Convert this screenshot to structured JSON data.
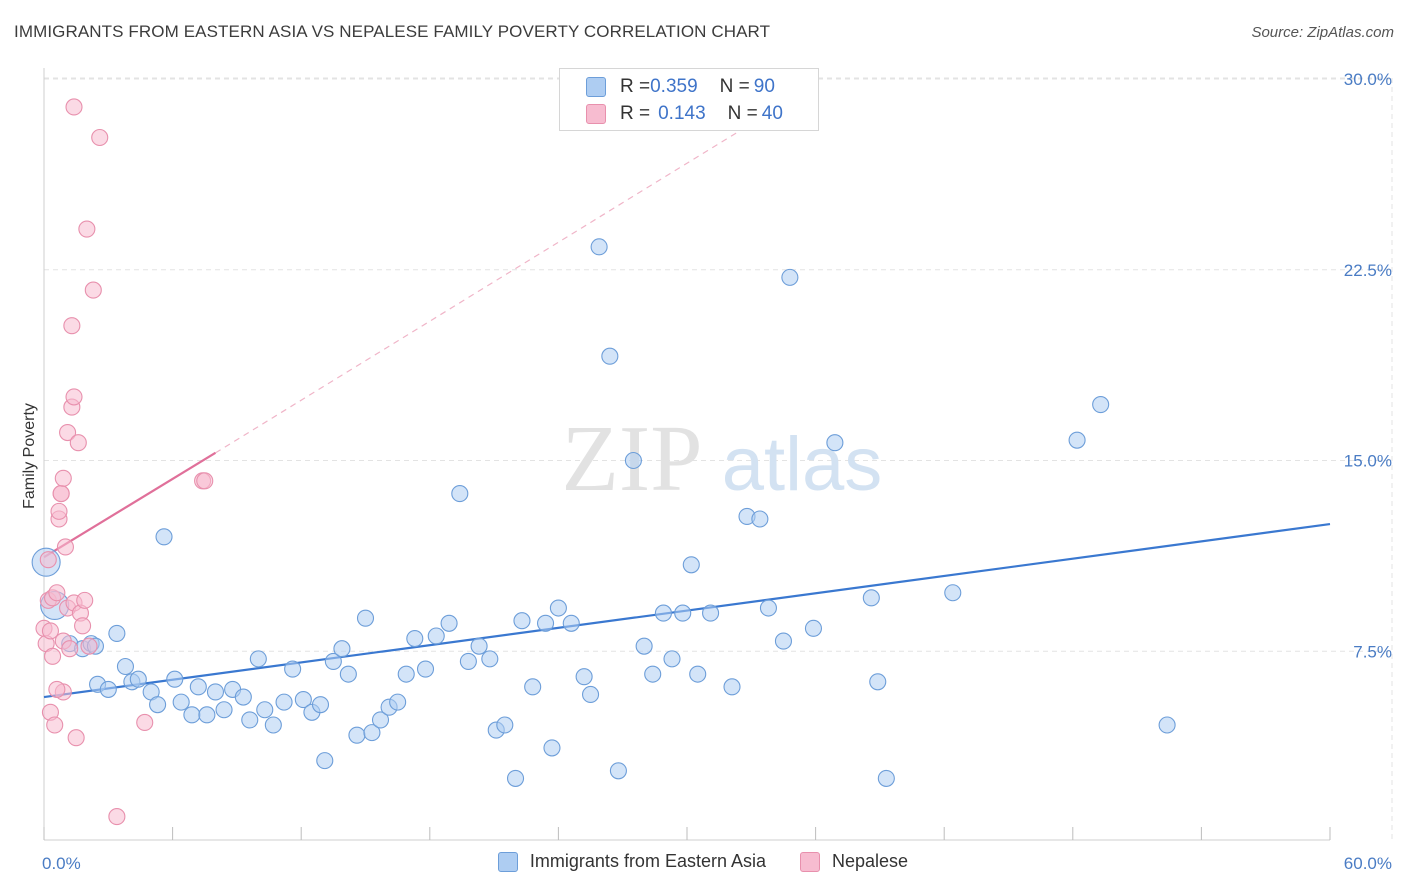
{
  "header": {
    "title": "IMMIGRANTS FROM EASTERN ASIA VS NEPALESE FAMILY POVERTY CORRELATION CHART",
    "source": "Source: ZipAtlas.com"
  },
  "watermark": {
    "zip": "ZIP",
    "atlas": "atlas"
  },
  "legend": {
    "rows": [
      {
        "r_label": "R = ",
        "r_value": "0.359",
        "n_label": "N = ",
        "n_value": "90",
        "color": "#aecdf2",
        "border": "#6d9ed9"
      },
      {
        "r_label": "R = ",
        "r_value": "0.143",
        "n_label": "N = ",
        "n_value": "40",
        "color": "#f7bcd0",
        "border": "#e890ad"
      }
    ]
  },
  "bottom_legend": {
    "items": [
      {
        "label": "Immigrants from Eastern Asia",
        "color": "#aecdf2",
        "border": "#6d9ed9"
      },
      {
        "label": "Nepalese",
        "color": "#f7bcd0",
        "border": "#e890ad"
      }
    ]
  },
  "chart_data": {
    "type": "scatter",
    "title": "IMMIGRANTS FROM EASTERN ASIA VS NEPALESE FAMILY POVERTY CORRELATION CHART",
    "xlabel": "",
    "ylabel": "Family Poverty",
    "xlim": [
      0,
      60
    ],
    "ylim": [
      0,
      30
    ],
    "x_ticks": [
      {
        "value": 0,
        "label": "0.0%"
      },
      {
        "value": 60,
        "label": "60.0%"
      }
    ],
    "x_minor_ticks": [
      0,
      6,
      12,
      18,
      24,
      30,
      36,
      42,
      48,
      54,
      60
    ],
    "y_ticks": [
      {
        "value": 7.5,
        "label": "7.5%"
      },
      {
        "value": 15,
        "label": "15.0%"
      },
      {
        "value": 22.5,
        "label": "22.5%"
      },
      {
        "value": 30,
        "label": "30.0%"
      }
    ],
    "grid": true,
    "series": [
      {
        "name": "Immigrants from Eastern Asia",
        "color": "#aecdf2",
        "stroke": "#6d9ed9",
        "trend": {
          "x0": 0,
          "y0": 5.7,
          "x1": 60,
          "y1": 12.5,
          "color": "#3a78d0",
          "dashed": false
        },
        "points": [
          {
            "x": 0.1,
            "y": 11.0,
            "big": true
          },
          {
            "x": 0.5,
            "y": 9.3,
            "big": true
          },
          {
            "x": 1.2,
            "y": 7.8
          },
          {
            "x": 1.8,
            "y": 7.6
          },
          {
            "x": 2.2,
            "y": 7.8
          },
          {
            "x": 3.4,
            "y": 8.2
          },
          {
            "x": 2.5,
            "y": 6.2
          },
          {
            "x": 3.0,
            "y": 6.0
          },
          {
            "x": 3.8,
            "y": 6.9
          },
          {
            "x": 4.1,
            "y": 6.3
          },
          {
            "x": 4.4,
            "y": 6.4
          },
          {
            "x": 5.0,
            "y": 5.9
          },
          {
            "x": 5.3,
            "y": 5.4
          },
          {
            "x": 5.6,
            "y": 12.0
          },
          {
            "x": 6.1,
            "y": 6.4
          },
          {
            "x": 6.4,
            "y": 5.5
          },
          {
            "x": 6.9,
            "y": 5.0
          },
          {
            "x": 7.2,
            "y": 6.1
          },
          {
            "x": 7.6,
            "y": 5.0
          },
          {
            "x": 8.0,
            "y": 5.9
          },
          {
            "x": 8.4,
            "y": 5.2
          },
          {
            "x": 8.8,
            "y": 6.0
          },
          {
            "x": 9.3,
            "y": 5.7
          },
          {
            "x": 9.6,
            "y": 4.8
          },
          {
            "x": 10.0,
            "y": 7.2
          },
          {
            "x": 10.3,
            "y": 5.2
          },
          {
            "x": 10.7,
            "y": 4.6
          },
          {
            "x": 11.2,
            "y": 5.5
          },
          {
            "x": 11.6,
            "y": 6.8
          },
          {
            "x": 12.1,
            "y": 5.6
          },
          {
            "x": 12.5,
            "y": 5.1
          },
          {
            "x": 12.9,
            "y": 5.4
          },
          {
            "x": 13.1,
            "y": 3.2
          },
          {
            "x": 13.5,
            "y": 7.1
          },
          {
            "x": 13.9,
            "y": 7.6
          },
          {
            "x": 14.2,
            "y": 6.6
          },
          {
            "x": 14.6,
            "y": 4.2
          },
          {
            "x": 15.0,
            "y": 8.8
          },
          {
            "x": 15.3,
            "y": 4.3
          },
          {
            "x": 15.7,
            "y": 4.8
          },
          {
            "x": 16.1,
            "y": 5.3
          },
          {
            "x": 16.5,
            "y": 5.5
          },
          {
            "x": 16.9,
            "y": 6.6
          },
          {
            "x": 17.3,
            "y": 8.0
          },
          {
            "x": 17.8,
            "y": 6.8
          },
          {
            "x": 18.3,
            "y": 8.1
          },
          {
            "x": 18.9,
            "y": 8.6
          },
          {
            "x": 19.4,
            "y": 13.7
          },
          {
            "x": 19.8,
            "y": 7.1
          },
          {
            "x": 20.3,
            "y": 7.7
          },
          {
            "x": 20.8,
            "y": 7.2
          },
          {
            "x": 21.1,
            "y": 4.4
          },
          {
            "x": 21.5,
            "y": 4.6
          },
          {
            "x": 22.0,
            "y": 2.5
          },
          {
            "x": 22.3,
            "y": 8.7
          },
          {
            "x": 22.8,
            "y": 6.1
          },
          {
            "x": 23.4,
            "y": 8.6
          },
          {
            "x": 23.7,
            "y": 3.7
          },
          {
            "x": 24.0,
            "y": 9.2
          },
          {
            "x": 24.6,
            "y": 8.6
          },
          {
            "x": 25.2,
            "y": 6.5
          },
          {
            "x": 25.5,
            "y": 5.8
          },
          {
            "x": 25.9,
            "y": 23.4
          },
          {
            "x": 26.4,
            "y": 19.1
          },
          {
            "x": 26.8,
            "y": 2.8
          },
          {
            "x": 27.5,
            "y": 15.0
          },
          {
            "x": 28.0,
            "y": 7.7
          },
          {
            "x": 28.4,
            "y": 6.6
          },
          {
            "x": 28.9,
            "y": 9.0
          },
          {
            "x": 29.3,
            "y": 7.2
          },
          {
            "x": 29.8,
            "y": 9.0
          },
          {
            "x": 30.2,
            "y": 10.9
          },
          {
            "x": 30.5,
            "y": 6.6
          },
          {
            "x": 31.1,
            "y": 9.0
          },
          {
            "x": 32.1,
            "y": 6.1
          },
          {
            "x": 32.8,
            "y": 12.8
          },
          {
            "x": 33.4,
            "y": 12.7
          },
          {
            "x": 33.8,
            "y": 9.2
          },
          {
            "x": 34.5,
            "y": 7.9
          },
          {
            "x": 34.8,
            "y": 22.2
          },
          {
            "x": 35.9,
            "y": 8.4
          },
          {
            "x": 36.9,
            "y": 15.7
          },
          {
            "x": 38.6,
            "y": 9.6
          },
          {
            "x": 38.9,
            "y": 6.3
          },
          {
            "x": 39.3,
            "y": 2.5
          },
          {
            "x": 42.4,
            "y": 9.8
          },
          {
            "x": 48.2,
            "y": 15.8
          },
          {
            "x": 49.3,
            "y": 17.2
          },
          {
            "x": 52.4,
            "y": 4.6
          },
          {
            "x": 2.4,
            "y": 7.7
          }
        ]
      },
      {
        "name": "Nepalese",
        "color": "#f7bcd0",
        "stroke": "#e890ad",
        "trend": {
          "x0": 0,
          "y0": 11.2,
          "x1": 8.0,
          "y1": 15.3,
          "color": "#e0709a",
          "dashed": false,
          "ext_x1": 33.5,
          "ext_y1": 28.5
        },
        "points": [
          {
            "x": 0.0,
            "y": 8.4
          },
          {
            "x": 0.1,
            "y": 7.8
          },
          {
            "x": 0.2,
            "y": 9.5
          },
          {
            "x": 0.3,
            "y": 8.3
          },
          {
            "x": 0.3,
            "y": 5.1
          },
          {
            "x": 0.4,
            "y": 7.3
          },
          {
            "x": 0.4,
            "y": 9.6
          },
          {
            "x": 0.5,
            "y": 4.6
          },
          {
            "x": 0.6,
            "y": 9.8
          },
          {
            "x": 0.7,
            "y": 12.7
          },
          {
            "x": 0.7,
            "y": 13.0
          },
          {
            "x": 0.8,
            "y": 13.7
          },
          {
            "x": 0.8,
            "y": 13.7
          },
          {
            "x": 0.9,
            "y": 14.3
          },
          {
            "x": 0.9,
            "y": 7.9
          },
          {
            "x": 0.9,
            "y": 5.9
          },
          {
            "x": 1.0,
            "y": 11.6
          },
          {
            "x": 1.1,
            "y": 16.1
          },
          {
            "x": 1.1,
            "y": 9.2
          },
          {
            "x": 1.2,
            "y": 7.6
          },
          {
            "x": 1.3,
            "y": 20.3
          },
          {
            "x": 1.3,
            "y": 17.1
          },
          {
            "x": 1.4,
            "y": 17.5
          },
          {
            "x": 1.4,
            "y": 9.4
          },
          {
            "x": 1.4,
            "y": 28.9
          },
          {
            "x": 1.5,
            "y": 4.1
          },
          {
            "x": 1.6,
            "y": 15.7
          },
          {
            "x": 1.7,
            "y": 9.0
          },
          {
            "x": 1.8,
            "y": 8.5
          },
          {
            "x": 1.9,
            "y": 9.5
          },
          {
            "x": 2.0,
            "y": 24.1
          },
          {
            "x": 2.1,
            "y": 7.7
          },
          {
            "x": 2.3,
            "y": 21.7
          },
          {
            "x": 2.6,
            "y": 27.7
          },
          {
            "x": 3.4,
            "y": 1.0
          },
          {
            "x": 4.7,
            "y": 4.7
          },
          {
            "x": 7.4,
            "y": 14.2
          },
          {
            "x": 7.5,
            "y": 14.2
          },
          {
            "x": 0.2,
            "y": 11.1
          },
          {
            "x": 0.6,
            "y": 6.0
          }
        ]
      }
    ]
  }
}
